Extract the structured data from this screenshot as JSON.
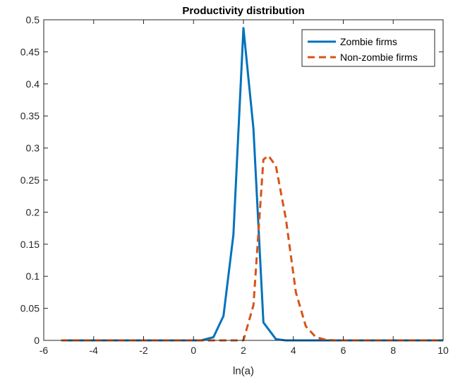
{
  "chart_data": {
    "type": "line",
    "title": "Productivity distribution",
    "xlabel": "ln(a)",
    "ylabel": "",
    "xlim": [
      -6,
      10
    ],
    "ylim": [
      0,
      0.5
    ],
    "xticks": [
      -6,
      -4,
      -2,
      0,
      2,
      4,
      6,
      8,
      10
    ],
    "yticks": [
      0,
      0.05,
      0.1,
      0.15,
      0.2,
      0.25,
      0.3,
      0.35,
      0.4,
      0.45,
      0.5
    ],
    "grid": false,
    "legend_position": "top-right",
    "series": [
      {
        "name": "Zombie firms",
        "color": "#0072BD",
        "style": "solid",
        "x": [
          -5.3,
          -4.9,
          -4.5,
          -4.1,
          -3.7,
          -3.3,
          -2.9,
          -2.5,
          -2.1,
          -1.7,
          -1.3,
          -0.9,
          -0.5,
          -0.1,
          0.3,
          0.8,
          1.2,
          1.6,
          2.0,
          2.4,
          2.8,
          3.3,
          3.7,
          4.1,
          4.5,
          4.9,
          5.3,
          5.7,
          6.1,
          6.5,
          6.9,
          7.3,
          7.7,
          8.1,
          8.5,
          8.9,
          9.3,
          9.7,
          10.0
        ],
        "y": [
          0,
          0,
          0,
          0,
          0,
          0,
          0,
          0,
          0,
          0,
          0,
          0,
          0,
          0,
          0,
          0.005,
          0.038,
          0.165,
          0.487,
          0.33,
          0.028,
          0.002,
          0,
          0,
          0,
          0,
          0,
          0,
          0,
          0,
          0,
          0,
          0,
          0,
          0,
          0,
          0,
          0,
          0
        ]
      },
      {
        "name": "Non-zombie firms",
        "color": "#D95319",
        "style": "dashed",
        "x": [
          -5.3,
          -4.9,
          -4.5,
          -4.1,
          -3.7,
          -3.3,
          -2.9,
          -2.5,
          -2.1,
          -1.7,
          -1.3,
          -0.9,
          -0.5,
          -0.1,
          0.3,
          0.8,
          1.2,
          1.6,
          2.0,
          2.4,
          2.8,
          3.0,
          3.3,
          3.7,
          4.1,
          4.5,
          4.9,
          5.3,
          5.7,
          6.1,
          6.5,
          6.9,
          7.3,
          7.7,
          8.1,
          8.5,
          8.9,
          9.3,
          9.7,
          10.0
        ],
        "y": [
          0,
          0,
          0,
          0,
          0,
          0,
          0,
          0,
          0,
          0,
          0,
          0,
          0,
          0,
          0,
          0,
          0,
          0,
          0,
          0.055,
          0.282,
          0.288,
          0.272,
          0.19,
          0.075,
          0.022,
          0.005,
          0.001,
          0,
          0,
          0,
          0,
          0,
          0,
          0,
          0,
          0,
          0,
          0,
          0
        ]
      }
    ]
  }
}
